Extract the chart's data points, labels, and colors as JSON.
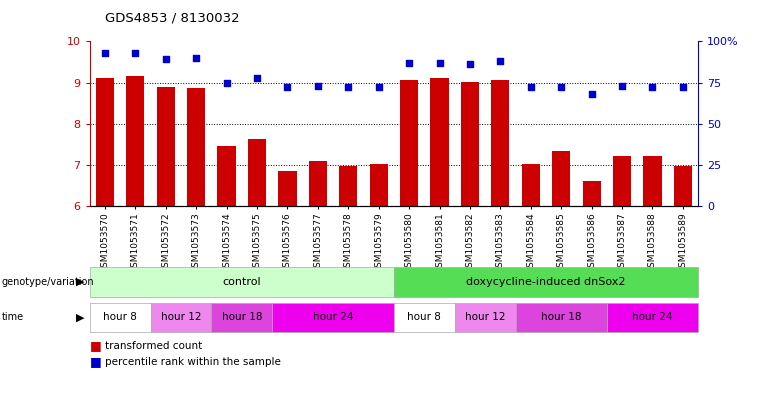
{
  "title": "GDS4853 / 8130032",
  "samples": [
    "GSM1053570",
    "GSM1053571",
    "GSM1053572",
    "GSM1053573",
    "GSM1053574",
    "GSM1053575",
    "GSM1053576",
    "GSM1053577",
    "GSM1053578",
    "GSM1053579",
    "GSM1053580",
    "GSM1053581",
    "GSM1053582",
    "GSM1053583",
    "GSM1053584",
    "GSM1053585",
    "GSM1053586",
    "GSM1053587",
    "GSM1053588",
    "GSM1053589"
  ],
  "bar_values": [
    9.12,
    9.15,
    8.88,
    8.86,
    7.46,
    7.62,
    6.86,
    7.1,
    6.98,
    7.02,
    9.05,
    9.1,
    9.02,
    9.05,
    7.02,
    7.35,
    6.62,
    7.23,
    7.23,
    6.98
  ],
  "percentile_values": [
    93,
    93,
    89,
    90,
    75,
    78,
    72,
    73,
    72,
    72,
    87,
    87,
    86,
    88,
    72,
    72,
    68,
    73,
    72,
    72
  ],
  "ylim_left": [
    6,
    10
  ],
  "ylim_right": [
    0,
    100
  ],
  "bar_color": "#cc0000",
  "dot_color": "#0000cc",
  "bar_width": 0.6,
  "genotype_groups": [
    {
      "label": "control",
      "start": 0,
      "end": 10,
      "color": "#ccffcc"
    },
    {
      "label": "doxycycline-induced dnSox2",
      "start": 10,
      "end": 20,
      "color": "#55dd55"
    }
  ],
  "time_groups": [
    {
      "label": "hour 8",
      "start": 0,
      "end": 2,
      "color": "#ffffff"
    },
    {
      "label": "hour 12",
      "start": 2,
      "end": 4,
      "color": "#ee88ee"
    },
    {
      "label": "hour 18",
      "start": 4,
      "end": 6,
      "color": "#dd44dd"
    },
    {
      "label": "hour 24",
      "start": 6,
      "end": 10,
      "color": "#ee00ee"
    },
    {
      "label": "hour 8",
      "start": 10,
      "end": 12,
      "color": "#ffffff"
    },
    {
      "label": "hour 12",
      "start": 12,
      "end": 14,
      "color": "#ee88ee"
    },
    {
      "label": "hour 18",
      "start": 14,
      "end": 17,
      "color": "#dd44dd"
    },
    {
      "label": "hour 24",
      "start": 17,
      "end": 20,
      "color": "#ee00ee"
    }
  ],
  "legend_items": [
    {
      "label": "transformed count",
      "color": "#cc0000"
    },
    {
      "label": "percentile rank within the sample",
      "color": "#0000cc"
    }
  ],
  "left_axis_color": "#cc0000",
  "right_axis_color": "#0000cc",
  "fig_width": 7.8,
  "fig_height": 3.93,
  "dpi": 100
}
